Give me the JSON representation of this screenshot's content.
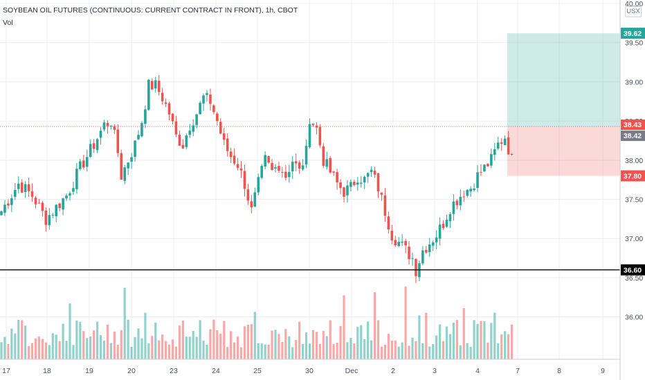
{
  "header": {
    "title": "SOYBEAN OIL FUTURES (CONTINUOUS: CURRENT CONTRACT IN FRONT), 1h, CBOT",
    "volume_label": "Vol",
    "currency": "USX"
  },
  "colors": {
    "up": "#26a69a",
    "down": "#ef5350",
    "grid": "#e9ecf1",
    "profit_zone": "#26a69a",
    "loss_zone": "#ef5350",
    "support_line": "#000000"
  },
  "markers": {
    "target": {
      "value": 39.62,
      "label": "39.62",
      "color": "#26a69a"
    },
    "last": {
      "value": 38.43,
      "label": "38.43",
      "color": "#ef5350"
    },
    "entry": {
      "value": 38.42,
      "label": "38.42",
      "color": "#787b86"
    },
    "stop": {
      "value": 37.8,
      "label": "37.80",
      "color": "#ef5350"
    },
    "support": {
      "value": 36.6,
      "label": "36.60",
      "color": "#000000"
    }
  },
  "chart_data": {
    "type": "candlestick",
    "title": "SOYBEAN OIL FUTURES (CONTINUOUS: CURRENT CONTRACT IN FRONT), 1h, CBOT",
    "ylim": [
      35.6,
      40.0
    ],
    "y_ticks": [
      "40.00",
      "39.50",
      "39.00",
      "38.50",
      "38.00",
      "37.50",
      "37.00",
      "36.50",
      "36.00"
    ],
    "x_ticks": [
      "17",
      "18",
      "19",
      "20",
      "23",
      "24",
      "25",
      "30",
      "Dec",
      "2",
      "3",
      "4",
      "7",
      "8",
      "9"
    ],
    "grid": true,
    "position_tool": {
      "entry": 38.42,
      "target": 39.62,
      "stop": 37.8
    },
    "horizontal_line": 36.6,
    "close_waypoints": [
      [
        0,
        37.35
      ],
      [
        5,
        37.7
      ],
      [
        9,
        37.55
      ],
      [
        13,
        37.25
      ],
      [
        16,
        37.4
      ],
      [
        19,
        37.55
      ],
      [
        23,
        37.9
      ],
      [
        27,
        38.2
      ],
      [
        30,
        38.45
      ],
      [
        32,
        38.5
      ],
      [
        34,
        38.1
      ],
      [
        35,
        37.8
      ],
      [
        37,
        38.0
      ],
      [
        39,
        38.2
      ],
      [
        41,
        38.5
      ],
      [
        43,
        38.95
      ],
      [
        45,
        38.95
      ],
      [
        47,
        38.8
      ],
      [
        49,
        38.6
      ],
      [
        51,
        38.3
      ],
      [
        53,
        38.2
      ],
      [
        55,
        38.45
      ],
      [
        57,
        38.6
      ],
      [
        59,
        38.8
      ],
      [
        61,
        38.75
      ],
      [
        63,
        38.5
      ],
      [
        65,
        38.2
      ],
      [
        67,
        38.05
      ],
      [
        69,
        37.95
      ],
      [
        71,
        37.7
      ],
      [
        73,
        37.35
      ],
      [
        75,
        37.7
      ],
      [
        77,
        38.0
      ],
      [
        79,
        37.85
      ],
      [
        81,
        37.95
      ],
      [
        83,
        37.8
      ],
      [
        85,
        38.0
      ],
      [
        87,
        37.85
      ],
      [
        89,
        38.1
      ],
      [
        90,
        38.55
      ],
      [
        92,
        38.4
      ],
      [
        94,
        38.0
      ],
      [
        96,
        37.85
      ],
      [
        98,
        37.7
      ],
      [
        100,
        37.6
      ],
      [
        102,
        37.65
      ],
      [
        104,
        37.8
      ],
      [
        106,
        37.75
      ],
      [
        108,
        37.85
      ],
      [
        110,
        37.65
      ],
      [
        112,
        37.35
      ],
      [
        114,
        37.05
      ],
      [
        116,
        36.95
      ],
      [
        118,
        36.85
      ],
      [
        120,
        36.75
      ],
      [
        121,
        36.6
      ],
      [
        123,
        36.85
      ],
      [
        125,
        36.95
      ],
      [
        127,
        37.05
      ],
      [
        129,
        37.2
      ],
      [
        131,
        37.4
      ],
      [
        133,
        37.5
      ],
      [
        135,
        37.6
      ],
      [
        137,
        37.65
      ],
      [
        139,
        37.8
      ],
      [
        141,
        37.9
      ],
      [
        143,
        38.0
      ],
      [
        145,
        38.2
      ],
      [
        147,
        38.3
      ],
      [
        149,
        38.0
      ],
      [
        150,
        38.45
      ]
    ]
  }
}
